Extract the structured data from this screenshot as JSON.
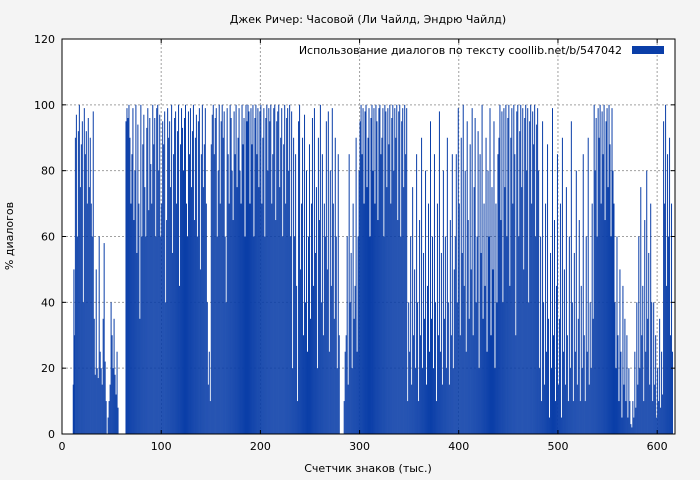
{
  "chart_data": {
    "type": "bar",
    "title": "Джек Ричер: Часовой (Ли Чайлд, Эндрю Чайлд)",
    "xlabel": "Счетчик знаков (тыс.)",
    "ylabel": "% диалогов",
    "xlim": [
      0,
      618
    ],
    "ylim": [
      0,
      120
    ],
    "xticks": [
      0,
      100,
      200,
      300,
      400,
      500,
      600
    ],
    "yticks": [
      0,
      20,
      40,
      60,
      80,
      100,
      120
    ],
    "grid": true,
    "legend_position": "top-right",
    "bar_width": 1,
    "series": [
      {
        "name": "Использование диалогов по тексту  coollib.net/b/547042",
        "color": "#0a3ea8",
        "segments": [
          {
            "x0": 11,
            "x1": 13,
            "values": [
              15,
              50,
              30
            ]
          },
          {
            "x0": 13,
            "x1": 26,
            "values": [
              90,
              97,
              60,
              92,
              100,
              75,
              88,
              95,
              40,
              99,
              85,
              92,
              70
            ]
          },
          {
            "x0": 26,
            "x1": 32,
            "values": [
              96,
              75,
              90,
              70,
              60,
              98
            ]
          },
          {
            "x0": 32,
            "x1": 45,
            "values": [
              35,
              18,
              50,
              20,
              17,
              60,
              25,
              20,
              15,
              35,
              58,
              22,
              10
            ]
          },
          {
            "x0": 45,
            "x1": 57,
            "values": [
              0,
              5,
              10,
              15,
              40,
              30,
              20,
              35,
              18,
              12,
              25,
              8
            ]
          },
          {
            "x0": 64,
            "x1": 96,
            "values": [
              95,
              99,
              96,
              100,
              90,
              70,
              85,
              99,
              65,
              80,
              100,
              55,
              94,
              70,
              35,
              100,
              60,
              88,
              97,
              75,
              60,
              93,
              99,
              68,
              96,
              82,
              70,
              100,
              88,
              96,
              60,
              99
            ]
          },
          {
            "x0": 96,
            "x1": 146,
            "values": [
              100,
              80,
              97,
              60,
              70,
              95,
              88,
              98,
              40,
              65,
              99,
              90,
              95,
              75,
              100,
              55,
              85,
              96,
              98,
              70,
              92,
              100,
              45,
              88,
              99,
              93,
              80,
              96,
              100,
              70,
              60,
              98,
              85,
              99,
              75,
              92,
              100,
              65,
              90,
              97,
              60,
              95,
              99,
              50,
              85,
              100,
              75,
              88,
              99,
              70
            ]
          },
          {
            "x0": 146,
            "x1": 186,
            "values": [
              40,
              15,
              25,
              10,
              88,
              97,
              100,
              85,
              96,
              99,
              60,
              80,
              100,
              70,
              95,
              100,
              90,
              98,
              60,
              40,
              99,
              85,
              70,
              100,
              96,
              80,
              65,
              98,
              85,
              100,
              75,
              90,
              99,
              80,
              70,
              100,
              88,
              96,
              60,
              100
            ]
          },
          {
            "x0": 186,
            "x1": 232,
            "values": [
              95,
              100,
              98,
              70,
              99,
              88,
              100,
              60,
              96,
              100,
              85,
              99,
              75,
              98,
              100,
              70,
              90,
              99,
              60,
              96,
              100,
              80,
              99,
              95,
              100,
              70,
              85,
              99,
              100,
              65,
              95,
              98,
              100,
              75,
              90,
              99,
              60,
              88,
              100,
              70,
              96,
              99,
              80,
              100,
              60,
              98
            ]
          },
          {
            "x0": 232,
            "x1": 280,
            "values": [
              20,
              90,
              60,
              85,
              45,
              10,
              95,
              100,
              50,
              70,
              90,
              30,
              97,
              40,
              80,
              25,
              60,
              88,
              35,
              70,
              96,
              45,
              99,
              55,
              75,
              20,
              90,
              65,
              100,
              40,
              85,
              30,
              70,
              60,
              95,
              50,
              98,
              25,
              80,
              45,
              99,
              70,
              35,
              90,
              60,
              20,
              85,
              30
            ]
          },
          {
            "x0": 284,
            "x1": 300,
            "values": [
              10,
              25,
              30,
              60,
              15,
              85,
              40,
              55,
              20,
              70,
              35,
              45,
              90,
              25,
              60,
              80
            ]
          },
          {
            "x0": 300,
            "x1": 348,
            "values": [
              95,
              100,
              85,
              99,
              70,
              98,
              100,
              75,
              90,
              99,
              60,
              96,
              100,
              80,
              99,
              70,
              100,
              95,
              65,
              99,
              100,
              85,
              90,
              99,
              60,
              100,
              98,
              75,
              99,
              88,
              100,
              70,
              96,
              100,
              80,
              99,
              90,
              100,
              65,
              98,
              100,
              60,
              95,
              99,
              75,
              100,
              85,
              99
            ]
          },
          {
            "x0": 348,
            "x1": 396,
            "values": [
              10,
              40,
              25,
              60,
              15,
              75,
              30,
              50,
              20,
              85,
              40,
              10,
              65,
              30,
              90,
              20,
              55,
              35,
              80,
              15,
              45,
              70,
              25,
              95,
              35,
              60,
              20,
              85,
              40,
              10,
              70,
              30,
              98,
              25,
              55,
              15,
              80,
              35,
              60,
              20,
              90,
              40,
              15,
              65,
              30,
              85,
              20,
              50
            ]
          },
          {
            "x0": 396,
            "x1": 440,
            "values": [
              60,
              85,
              40,
              99,
              70,
              30,
              90,
              55,
              100,
              45,
              80,
              25,
              95,
              65,
              35,
              88,
              50,
              99,
              30,
              75,
              96,
              40,
              60,
              92,
              20,
              85,
              55,
              100,
              35,
              70,
              45,
              90,
              25,
              80,
              60,
              99,
              30,
              75,
              50,
              95,
              20,
              70,
              40,
              85
            ]
          },
          {
            "x0": 440,
            "x1": 480,
            "values": [
              90,
              100,
              65,
              98,
              40,
              99,
              75,
              100,
              60,
              96,
              100,
              45,
              90,
              99,
              70,
              100,
              85,
              30,
              98,
              100,
              60,
              92,
              100,
              75,
              99,
              50,
              96,
              100,
              80,
              99,
              40,
              95,
              100,
              70,
              98,
              88,
              100,
              60,
              94,
              99
            ]
          },
          {
            "x0": 480,
            "x1": 536,
            "values": [
              80,
              20,
              60,
              10,
              95,
              40,
              15,
              70,
              25,
              88,
              35,
              5,
              55,
              20,
              99,
              30,
              65,
              10,
              45,
              85,
              15,
              35,
              70,
              5,
              90,
              25,
              50,
              15,
              75,
              30,
              10,
              60,
              20,
              95,
              40,
              10,
              55,
              25,
              80,
              15,
              35,
              65,
              10,
              45,
              20,
              85,
              30,
              10,
              60,
              25,
              90,
              15,
              40,
              20,
              70,
              35
            ]
          },
          {
            "x0": 536,
            "x1": 556,
            "values": [
              100,
              80,
              96,
              60,
              99,
              90,
              100,
              70,
              98,
              85,
              100,
              65,
              95,
              99,
              75,
              100,
              88,
              60,
              99,
              80
            ]
          },
          {
            "x0": 556,
            "x1": 574,
            "values": [
              70,
              40,
              20,
              60,
              30,
              10,
              50,
              25,
              5,
              45,
              15,
              35,
              10,
              30,
              5,
              20,
              10,
              3
            ]
          },
          {
            "x0": 574,
            "x1": 595,
            "values": [
              2,
              10,
              5,
              25,
              8,
              40,
              15,
              60,
              20,
              75,
              30,
              45,
              10,
              65,
              25,
              80,
              35,
              55,
              15,
              70,
              40
            ]
          },
          {
            "x0": 595,
            "x1": 606,
            "values": [
              10,
              40,
              15,
              30,
              5,
              20,
              10,
              35,
              8,
              25,
              12
            ]
          },
          {
            "x0": 606,
            "x1": 616,
            "values": [
              95,
              70,
              100,
              45,
              85,
              60,
              90,
              30,
              70,
              25
            ]
          }
        ]
      }
    ]
  }
}
